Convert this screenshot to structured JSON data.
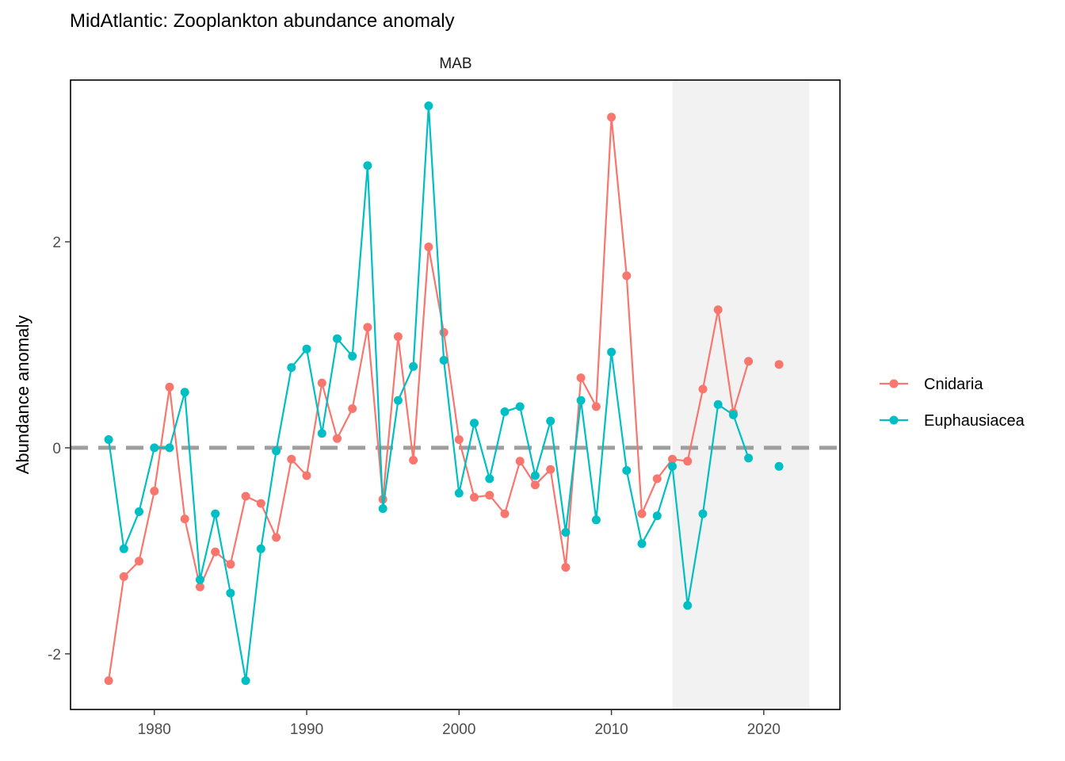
{
  "chart_data": {
    "type": "line",
    "title": "MidAtlantic: Zooplankton abundance anomaly",
    "facet_label": "MAB",
    "xlabel": "",
    "ylabel": "Abundance anomaly",
    "xlim": [
      1974.5,
      2025.0
    ],
    "ylim": [
      -2.54,
      3.57
    ],
    "xticks": [
      1980,
      1990,
      2000,
      2010,
      2020
    ],
    "yticks": [
      -2,
      0,
      2
    ],
    "grid": false,
    "legend_position": "right",
    "highlight_band": [
      2014,
      2023
    ],
    "reference_line_y": 0,
    "series": [
      {
        "name": "Cnidaria",
        "color": "#F8766D",
        "x": [
          1977,
          1978,
          1979,
          1980,
          1981,
          1982,
          1983,
          1984,
          1985,
          1986,
          1987,
          1988,
          1989,
          1990,
          1991,
          1992,
          1993,
          1994,
          1995,
          1996,
          1997,
          1998,
          1999,
          2000,
          2001,
          2002,
          2003,
          2004,
          2005,
          2006,
          2007,
          2008,
          2009,
          2010,
          2011,
          2012,
          2013,
          2014,
          2015,
          2016,
          2017,
          2018,
          2019,
          2021
        ],
        "y": [
          -2.26,
          -1.25,
          -1.1,
          -0.42,
          0.59,
          -0.69,
          -1.35,
          -1.01,
          -1.13,
          -0.47,
          -0.54,
          -0.87,
          -0.11,
          -0.27,
          0.63,
          0.09,
          0.38,
          1.17,
          -0.5,
          1.08,
          -0.12,
          1.95,
          1.12,
          0.08,
          -0.48,
          -0.46,
          -0.64,
          -0.13,
          -0.36,
          -0.21,
          -1.16,
          0.68,
          0.4,
          3.21,
          1.67,
          -0.64,
          -0.3,
          -0.11,
          -0.13,
          0.57,
          1.34,
          0.34,
          0.84,
          0.81
        ],
        "gap_before_x": 2021
      },
      {
        "name": "Euphausiacea",
        "color": "#00BFC4",
        "x": [
          1977,
          1978,
          1979,
          1980,
          1981,
          1982,
          1983,
          1984,
          1985,
          1986,
          1987,
          1988,
          1989,
          1990,
          1991,
          1992,
          1993,
          1994,
          1995,
          1996,
          1997,
          1998,
          1999,
          2000,
          2001,
          2002,
          2003,
          2004,
          2005,
          2006,
          2007,
          2008,
          2009,
          2010,
          2011,
          2012,
          2013,
          2014,
          2015,
          2016,
          2017,
          2018,
          2019,
          2021
        ],
        "y": [
          0.08,
          -0.98,
          -0.62,
          0.0,
          0.0,
          0.54,
          -1.28,
          -0.64,
          -1.41,
          -2.26,
          -0.98,
          -0.03,
          0.78,
          0.96,
          0.14,
          1.06,
          0.89,
          2.74,
          -0.59,
          0.46,
          0.79,
          3.32,
          0.85,
          -0.44,
          0.24,
          -0.3,
          0.35,
          0.4,
          -0.27,
          0.26,
          -0.82,
          0.46,
          -0.7,
          0.93,
          -0.22,
          -0.93,
          -0.66,
          -0.18,
          -1.53,
          -0.64,
          0.42,
          0.32,
          -0.1,
          -0.18
        ],
        "gap_before_x": 2021
      }
    ]
  }
}
